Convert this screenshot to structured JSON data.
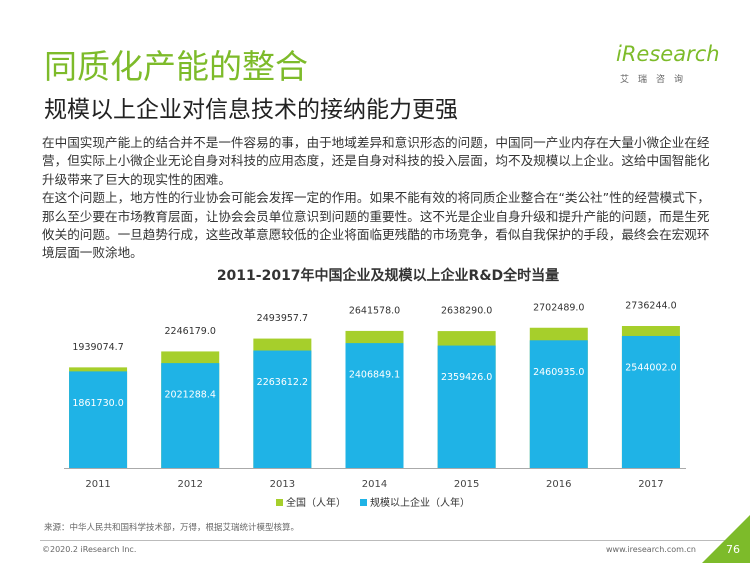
{
  "header": {
    "title": "同质化产能的整合",
    "subtitle": "规模以上企业对信息技术的接纳能力更强"
  },
  "logo": {
    "name": "iResearch",
    "tagline": "艾瑞咨询"
  },
  "body": {
    "paragraphs": [
      "在中国实现产能上的结合并不是一件容易的事，由于地域差异和意识形态的问题，中国同一产业内存在大量小微企业在经营，但实际上小微企业无论自身对科技的应用态度，还是自身对科技的投入层面，均不及规模以上企业。这给中国智能化升级带来了巨大的现实性的困难。",
      "在这个问题上，地方性的行业协会可能会发挥一定的作用。如果不能有效的将同质企业整合在“类公社”性的经营模式下，那么至少要在市场教育层面，让协会会员单位意识到问题的重要性。这不光是企业自身升级和提升产能的问题，而是生死攸关的问题。一旦趋势行成，这些改革意愿较低的企业将面临更残酷的市场竞争，看似自我保护的手段，最终会在宏观环境层面一败涂地。"
    ]
  },
  "chart_data": {
    "type": "bar",
    "title": "2011-2017年中国企业及规模以上企业R&D全时当量",
    "categories": [
      "2011",
      "2012",
      "2013",
      "2014",
      "2015",
      "2016",
      "2017"
    ],
    "series": [
      {
        "name": "全国（人年）",
        "color": "#a6cf2b",
        "values": [
          1939074.7,
          2246179.0,
          2493957.7,
          2641578.0,
          2638290.0,
          2702489.0,
          2736244.0
        ],
        "value_labels": [
          "1939074.7",
          "2246179.0",
          "2493957.7",
          "2641578.0",
          "2638290.0",
          "2702489.0",
          "2736244.0"
        ]
      },
      {
        "name": "规模以上企业（人年）",
        "color": "#1fb3e6",
        "values": [
          1861730.0,
          2021288.4,
          2263612.2,
          2406849.1,
          2359426.0,
          2460935.0,
          2544002.0
        ],
        "value_labels": [
          "1861730.0",
          "2021288.4",
          "2263612.2",
          "2406849.1",
          "2359426.0",
          "2460935.0",
          "2544002.0"
        ]
      }
    ]
  },
  "footer": {
    "source": "来源：中华人民共和国科学技术部，万得，根据艾瑞统计模型核算。",
    "copyright": "©2020.2 iResearch Inc.",
    "url": "www.iresearch.com.cn",
    "page": "76"
  }
}
